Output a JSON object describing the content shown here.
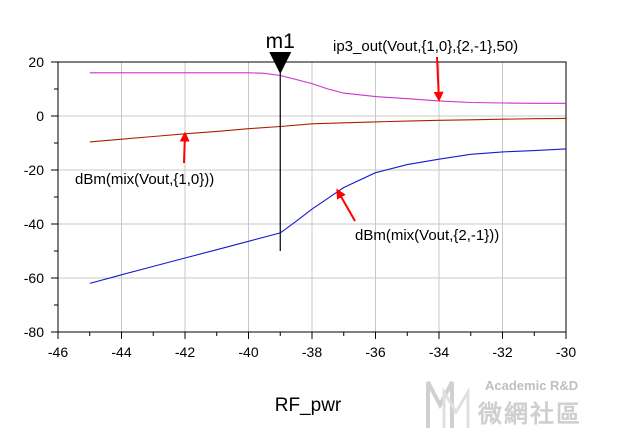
{
  "chart_data": {
    "type": "line",
    "xlabel": "RF_pwr",
    "ylabel": "",
    "xlim": [
      -46,
      -30
    ],
    "ylim": [
      -80,
      20
    ],
    "x_ticks": [
      -46,
      -44,
      -42,
      -40,
      -38,
      -36,
      -34,
      -32,
      -30
    ],
    "y_ticks": [
      -80,
      -60,
      -40,
      -20,
      0,
      20
    ],
    "grid": true,
    "series": [
      {
        "name": "ip3_out(Vout,{1,0},{2,-1},50)",
        "color": "#cc33cc",
        "x": [
          -45,
          -44,
          -43,
          -42,
          -41,
          -40,
          -39.5,
          -39,
          -38.5,
          -38,
          -37.5,
          -37,
          -36,
          -35,
          -34,
          -33,
          -32,
          -31,
          -30
        ],
        "y": [
          16,
          16,
          16,
          16,
          16,
          16,
          15.8,
          15,
          13.5,
          12,
          10,
          8.5,
          7.2,
          6.4,
          5.6,
          5,
          4.8,
          4.7,
          4.7
        ]
      },
      {
        "name": "dBm(mix(Vout,{1,0}))",
        "color": "#aa2200",
        "x": [
          -45,
          -44,
          -43,
          -42,
          -41,
          -40,
          -39,
          -38,
          -37,
          -36,
          -35,
          -34,
          -33,
          -32,
          -31,
          -30
        ],
        "y": [
          -9.6,
          -8.6,
          -7.6,
          -6.6,
          -5.7,
          -4.7,
          -3.9,
          -2.9,
          -2.5,
          -2.2,
          -1.9,
          -1.6,
          -1.4,
          -1.2,
          -1.0,
          -0.9
        ]
      },
      {
        "name": "dBm(mix(Vout,{2,-1}))",
        "color": "#1a1acc",
        "x": [
          -45,
          -44,
          -43,
          -42,
          -41,
          -40,
          -39,
          -38.5,
          -38,
          -37.5,
          -37,
          -36,
          -35,
          -34,
          -33,
          -32,
          -31,
          -30
        ],
        "y": [
          -62,
          -58.8,
          -55.7,
          -52.6,
          -49.5,
          -46.4,
          -43.3,
          -39,
          -34.5,
          -30.5,
          -26.5,
          -21,
          -18,
          -16,
          -14.2,
          -13.3,
          -12.8,
          -12.2
        ]
      }
    ],
    "marker": {
      "label": "m1",
      "x": -39
    },
    "annotations": [
      {
        "text": "ip3_out(Vout,{1,0},{2,-1},50)",
        "series": 0,
        "arrow_to": [
          -34,
          6
        ]
      },
      {
        "text": "dBm(mix(Vout,{1,0}))",
        "series": 1,
        "arrow_to": [
          -42,
          -6.5
        ]
      },
      {
        "text": "dBm(mix(Vout,{2,-1}))",
        "series": 2,
        "arrow_to": [
          -37.2,
          -27.5
        ]
      }
    ],
    "arrow_color": "#ff0000"
  },
  "watermark": {
    "line1": "Academic R&D",
    "line2": "微網社區"
  }
}
